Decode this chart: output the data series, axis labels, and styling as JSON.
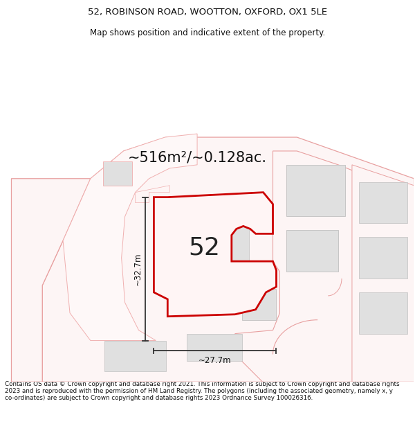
{
  "title_line1": "52, ROBINSON ROAD, WOOTTON, OXFORD, OX1 5LE",
  "title_line2": "Map shows position and indicative extent of the property.",
  "area_text": "~516m²/~0.128ac.",
  "label_52": "52",
  "label_width": "~27.7m",
  "label_height": "~32.7m",
  "footer_text": "Contains OS data © Crown copyright and database right 2021. This information is subject to Crown copyright and database rights 2023 and is reproduced with the permission of HM Land Registry. The polygons (including the associated geometry, namely x, y co-ordinates) are subject to Crown copyright and database rights 2023 Ordnance Survey 100026316.",
  "bg_color": "#ffffff",
  "highlight_color": "#cc0000",
  "light_red": "#e8a0a0",
  "light_red2": "#f0b0b0",
  "gray_fill": "#d8d8d8",
  "gray_fill2": "#e0e0e0"
}
